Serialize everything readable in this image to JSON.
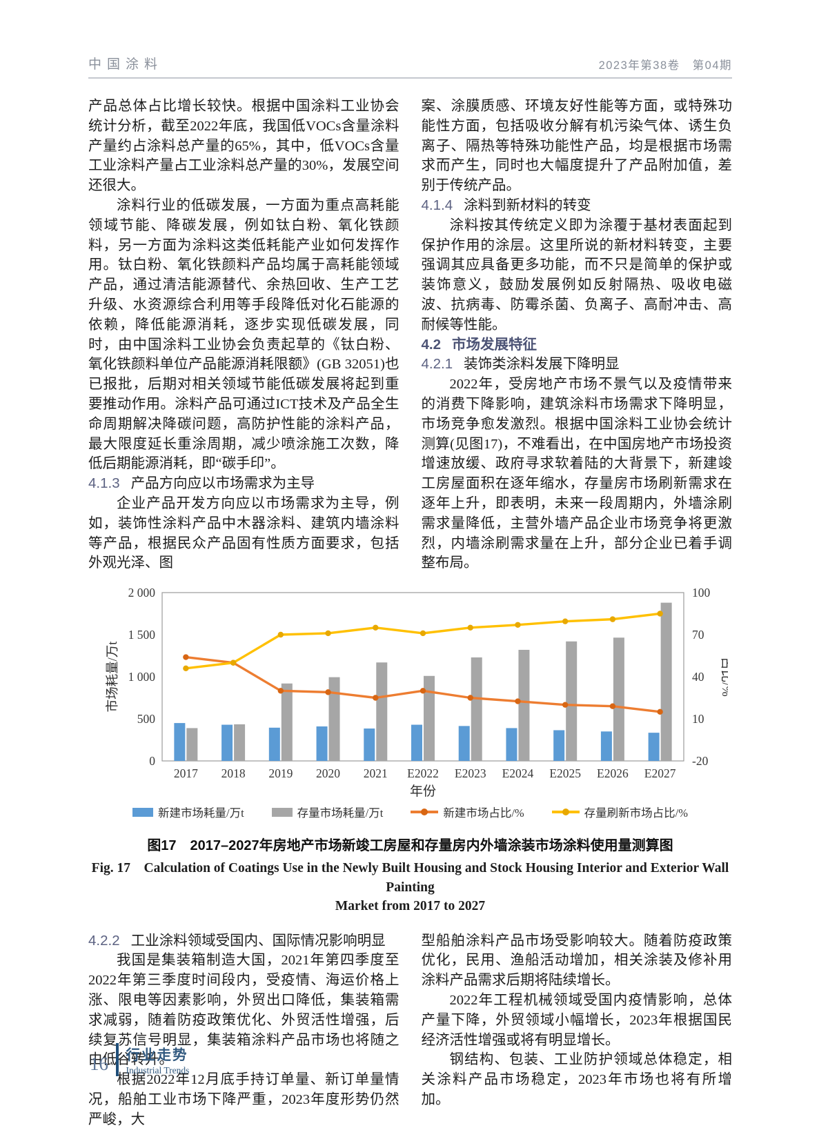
{
  "header": {
    "journal": "中国涂料",
    "issue": "2023年第38卷　第04期"
  },
  "article": {
    "col1": {
      "p1": "产品总体占比增长较快。根据中国涂料工业协会统计分析，截至2022年底，我国低VOCs含量涂料产量约占涂料总产量的65%，其中，低VOCs含量工业涂料产量占工业涂料总产量的30%，发展空间还很大。",
      "p2": "涂料行业的低碳发展，一方面为重点高耗能领域节能、降碳发展，例如钛白粉、氧化铁颜料，另一方面为涂料这类低耗能产业如何发挥作用。钛白粉、氧化铁颜料产品均属于高耗能领域产品，通过清洁能源替代、余热回收、生产工艺升级、水资源综合利用等手段降低对化石能源的依赖，降低能源消耗，逐步实现低碳发展，同时，由中国涂料工业协会负责起草的《钛白粉、氧化铁颜料单位产品能源消耗限额》(GB 32051)也已报批，后期对相关领域节能低碳发展将起到重要推动作用。涂料产品可通过ICT技术及产品全生命周期解决降碳问题，高防护性能的涂料产品，最大限度延长重涂周期，减少喷涂施工次数，降低后期能源消耗，即“碳手印”。",
      "h413_num": "4.1.3",
      "h413_title": "产品方向应以市场需求为主导",
      "p3": "企业产品开发方向应以市场需求为主导，例如，装饰性涂料产品中木器涂料、建筑内墙涂料等产品，根据民众产品固有性质方面要求，包括外观光泽、图"
    },
    "col2": {
      "p4": "案、涂膜质感、环境友好性能等方面，或特殊功能性方面，包括吸收分解有机污染气体、诱生负离子、隔热等特殊功能性产品，均是根据市场需求而产生，同时也大幅度提升了产品附加值，差别于传统产品。",
      "h414_num": "4.1.4",
      "h414_title": "涂料到新材料的转变",
      "p5": "涂料按其传统定义即为涂覆于基材表面起到保护作用的涂层。这里所说的新材料转变，主要强调其应具备更多功能，而不只是简单的保护或装饰意义，鼓励发展例如反射隔热、吸收电磁波、抗病毒、防霉杀菌、负离子、高耐冲击、高耐候等性能。",
      "h42_num": "4.2",
      "h42_title": "市场发展特征",
      "h421_num": "4.2.1",
      "h421_title": "装饰类涂料发展下降明显",
      "p6": "2022年，受房地产市场不景气以及疫情带来的消费下降影响，建筑涂料市场需求下降明显，市场竞争愈发激烈。根据中国涂料工业协会统计测算(见图17)，不难看出，在中国房地产市场投资增速放缓、政府寻求软着陆的大背景下，新建竣工房屋面积在逐年缩水，存量房市场刷新需求在逐年上升，即表明，未来一段周期内，外墙涂刷需求量降低，主营外墙产品企业市场竞争将更激烈，内墙涂刷需求量在上升，部分企业已着手调整布局。"
    },
    "col3": {
      "h422_num": "4.2.2",
      "h422_title": "工业涂料领域受国内、国际情况影响明显",
      "p7": "我国是集装箱制造大国，2021年第四季度至2022年第三季度时间段内，受疫情、海运价格上涨、限电等因素影响，外贸出口降低，集装箱需求减弱，随着防疫政策优化、外贸活性增强，后续复苏信号明显，集装箱涂料产品市场也将随之由低谷转升。",
      "p8": "根据2022年12月底手持订单量、新订单量情况，船舶工业市场下降严重，2023年度形势仍然严峻，大"
    },
    "col4": {
      "p9": "型船舶涂料产品市场受影响较大。随着防疫政策优化，民用、渔船活动增加，相关涂装及修补用涂料产品需求后期将陆续增长。",
      "p10": "2022年工程机械领域受国内疫情影响，总体产量下降，外贸领域小幅增长，2023年根据国民经济活性增强或将有明显增长。",
      "p11": "钢结构、包装、工业防护领域总体稳定，相关涂料产品市场稳定，2023年市场也将有所增加。"
    }
  },
  "figure": {
    "caption_cn": "图17　2017–2027年房地产市场新竣工房屋和存量房内外墙涂装市场涂料使用量测算图",
    "caption_en_line1": "Fig. 17　Calculation of Coatings Use in the Newly Built Housing and Stock Housing Interior and Exterior Wall Painting",
    "caption_en_line2": "Market from 2017 to 2027"
  },
  "chart_data": {
    "type": "bar",
    "subtype": "combo bar+line, dual axis",
    "categories": [
      "2017",
      "2018",
      "2019",
      "2020",
      "2021",
      "E2022",
      "E2023",
      "E2024",
      "E2025",
      "E2026",
      "E2027"
    ],
    "xlabel": "年份",
    "ylabel_left": "市场耗量/万t",
    "ylabel_right": "占比/%",
    "ylim_left": [
      0,
      2000
    ],
    "yticks_left_values": [
      0,
      500,
      1000,
      1500,
      2000
    ],
    "yticks_left_labels": [
      "0",
      "500",
      "1 000",
      "1 500",
      "2 000"
    ],
    "ylim_right": [
      -20,
      100
    ],
    "yticks_right_values": [
      -20,
      10,
      40,
      70,
      100
    ],
    "yticks_right_labels": [
      "-20",
      "10",
      "40",
      "70",
      "100"
    ],
    "grid": false,
    "legend_position": "bottom",
    "series": [
      {
        "name": "新建市场耗量/万t",
        "type": "bar",
        "axis": "left",
        "color": "#5B9BD5",
        "values": [
          450,
          430,
          395,
          410,
          385,
          430,
          415,
          390,
          365,
          350,
          335
        ]
      },
      {
        "name": "存量市场耗量/万t",
        "type": "bar",
        "axis": "left",
        "color": "#A6A6A6",
        "values": [
          390,
          435,
          920,
          995,
          1170,
          1010,
          1230,
          1320,
          1420,
          1465,
          1880
        ]
      },
      {
        "name": "新建市场占比/%",
        "type": "line",
        "axis": "right",
        "color": "#ED7D31",
        "marker_color": "#D86613",
        "values": [
          54,
          50,
          30,
          29,
          25,
          30,
          25,
          22.5,
          20,
          19,
          15
        ]
      },
      {
        "name": "存量刷新市场占比/%",
        "type": "line",
        "axis": "right",
        "color": "#FFC000",
        "marker_color": "#E8A800",
        "values": [
          46,
          50,
          70,
          71,
          75,
          71,
          75,
          77,
          79.5,
          81,
          85
        ]
      }
    ]
  },
  "footer": {
    "page": "16",
    "section_cn": "行业走势",
    "section_en": "Industrial Trends"
  }
}
